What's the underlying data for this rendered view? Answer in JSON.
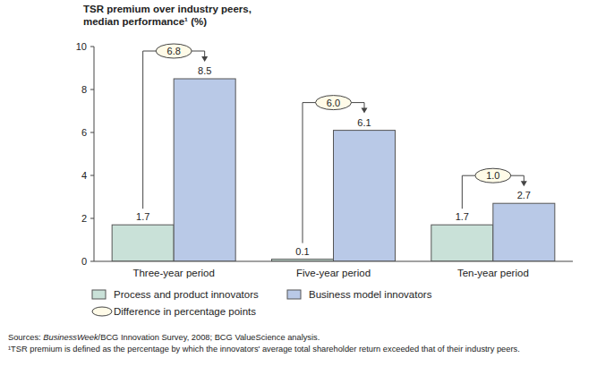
{
  "chart_data": {
    "type": "bar",
    "title": "TSR premium over industry peers,",
    "subtitle": "median performance¹ (%)",
    "categories": [
      "Three-year period",
      "Five-year period",
      "Ten-year period"
    ],
    "series": [
      {
        "name": "Process and product innovators",
        "color": "#c9e1d8",
        "values": [
          1.7,
          0.1,
          1.7
        ]
      },
      {
        "name": "Business model innovators",
        "color": "#b9c9e7",
        "values": [
          8.5,
          6.1,
          2.7
        ]
      }
    ],
    "differences": [
      6.8,
      6,
      1
    ],
    "difference_labels": [
      "6.8",
      "6.0",
      "1.0"
    ],
    "difference_legend": "Difference in percentage points",
    "ylim": [
      0,
      10
    ],
    "yticks": [
      0,
      2,
      4,
      6,
      8,
      10
    ],
    "grid": false,
    "legend": "bottom",
    "data_labels": true,
    "sources": {
      "prefix": "Sources: ",
      "italic": "BusinessWeek",
      "rest": "/BCG Innovation Survey, 2008; BCG ValueScience analysis."
    },
    "footnote": "¹TSR premium is defined as the percentage by which the innovators' average total shareholder return exceeded that of their industry peers."
  }
}
